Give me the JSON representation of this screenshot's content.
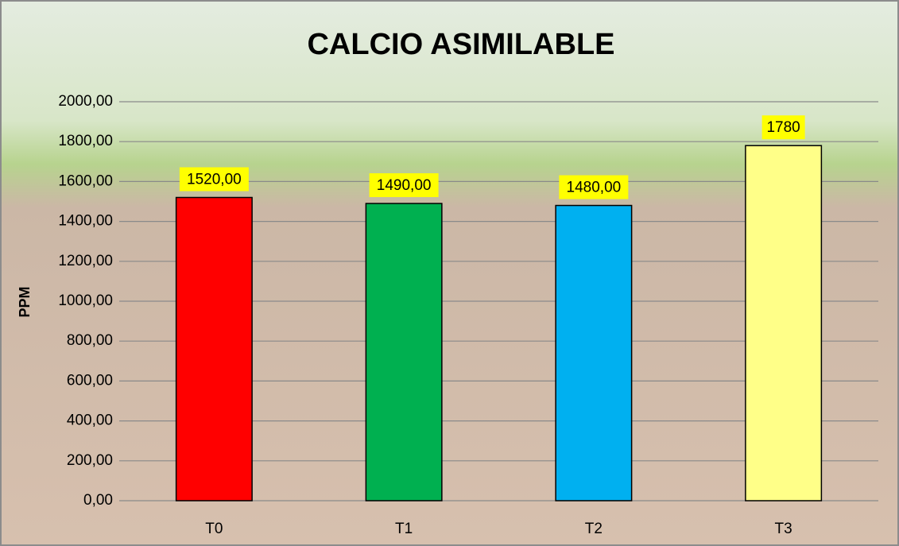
{
  "chart_data": {
    "type": "bar",
    "title": "CALCIO ASIMILABLE",
    "y_label": "PPM",
    "categories": [
      "T0",
      "T1",
      "T2",
      "T3"
    ],
    "values": [
      1520,
      1490,
      1480,
      1780
    ],
    "value_labels": [
      "1520,00",
      "1490,00",
      "1480,00",
      "1780"
    ],
    "colors": [
      "#ff0000",
      "#00b050",
      "#00b0f0",
      "#ffff88"
    ],
    "label_background": "#ffff00",
    "ylim": [
      0,
      2000
    ],
    "yticks": [
      {
        "value": 0,
        "label": "0,00"
      },
      {
        "value": 200,
        "label": "200,00"
      },
      {
        "value": 400,
        "label": "400,00"
      },
      {
        "value": 600,
        "label": "600,00"
      },
      {
        "value": 800,
        "label": "800,00"
      },
      {
        "value": 1000,
        "label": "1000,00"
      },
      {
        "value": 1200,
        "label": "1200,00"
      },
      {
        "value": 1400,
        "label": "1400,00"
      },
      {
        "value": 1600,
        "label": "1600,00"
      },
      {
        "value": 1800,
        "label": "1800,00"
      },
      {
        "value": 2000,
        "label": "2000,00"
      }
    ],
    "grid": true
  }
}
